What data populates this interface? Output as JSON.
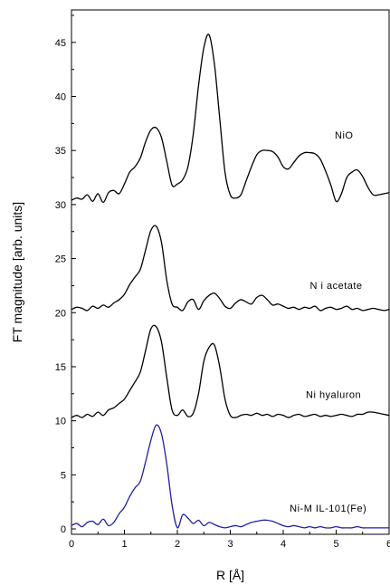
{
  "chart_data": {
    "type": "line",
    "xlabel": "R [Å]",
    "ylabel": "FT magnitude [arb. units]",
    "xlim": [
      0,
      6
    ],
    "ylim": [
      -0.5,
      48
    ],
    "xticks": [
      0,
      1,
      2,
      3,
      4,
      5,
      6
    ],
    "yticks": [
      0,
      5,
      10,
      15,
      20,
      25,
      30,
      35,
      40,
      45
    ],
    "grid": false,
    "legend": "none",
    "series": [
      {
        "name": "NiO",
        "color": "#000000",
        "x": [
          0.0,
          0.1,
          0.2,
          0.3,
          0.4,
          0.5,
          0.6,
          0.7,
          0.8,
          0.9,
          1.0,
          1.1,
          1.2,
          1.3,
          1.4,
          1.5,
          1.6,
          1.7,
          1.8,
          1.9,
          2.0,
          2.1,
          2.2,
          2.3,
          2.4,
          2.5,
          2.6,
          2.7,
          2.8,
          2.9,
          3.0,
          3.1,
          3.2,
          3.3,
          3.4,
          3.5,
          3.6,
          3.7,
          3.8,
          3.9,
          4.0,
          4.1,
          4.2,
          4.3,
          4.4,
          4.5,
          4.6,
          4.7,
          4.8,
          4.9,
          5.0,
          5.1,
          5.2,
          5.3,
          5.4,
          5.5,
          5.6,
          5.7,
          5.8,
          5.9,
          6.0
        ],
        "y": [
          30.4,
          30.6,
          30.5,
          30.9,
          30.3,
          31.0,
          30.2,
          31.1,
          31.3,
          31.0,
          31.9,
          33.0,
          33.5,
          34.3,
          35.8,
          36.9,
          37.1,
          36.2,
          34.0,
          31.8,
          31.9,
          32.3,
          33.5,
          36.5,
          41.0,
          44.5,
          45.7,
          43.0,
          38.0,
          33.0,
          30.9,
          30.6,
          30.9,
          32.2,
          33.5,
          34.6,
          35.0,
          35.0,
          34.9,
          34.4,
          33.5,
          33.3,
          33.9,
          34.5,
          34.8,
          34.8,
          34.7,
          34.2,
          33.1,
          31.8,
          30.3,
          31.0,
          32.5,
          33.0,
          33.2,
          32.6,
          31.6,
          30.9,
          30.9,
          31.0,
          31.1
        ]
      },
      {
        "name": "N i acetate",
        "color": "#000000",
        "x": [
          0.0,
          0.1,
          0.2,
          0.3,
          0.4,
          0.5,
          0.6,
          0.7,
          0.8,
          0.9,
          1.0,
          1.1,
          1.2,
          1.3,
          1.4,
          1.5,
          1.6,
          1.7,
          1.8,
          1.9,
          2.0,
          2.1,
          2.2,
          2.3,
          2.4,
          2.5,
          2.6,
          2.7,
          2.8,
          2.9,
          3.0,
          3.1,
          3.2,
          3.3,
          3.4,
          3.5,
          3.6,
          3.7,
          3.8,
          3.9,
          4.0,
          4.1,
          4.2,
          4.3,
          4.4,
          4.5,
          4.6,
          4.7,
          4.8,
          4.9,
          5.0,
          5.1,
          5.2,
          5.3,
          5.4,
          5.5,
          5.6,
          5.7,
          5.8,
          5.9,
          6.0
        ],
        "y": [
          20.3,
          20.5,
          20.4,
          20.2,
          20.6,
          20.4,
          20.7,
          20.5,
          20.9,
          21.2,
          21.7,
          22.6,
          23.3,
          24.0,
          25.8,
          27.6,
          28.0,
          26.5,
          23.0,
          20.8,
          20.5,
          20.2,
          21.0,
          21.2,
          20.3,
          21.1,
          21.6,
          21.8,
          21.3,
          20.6,
          20.4,
          20.9,
          21.2,
          21.0,
          20.8,
          21.4,
          21.6,
          21.2,
          20.7,
          20.8,
          20.6,
          20.4,
          20.5,
          20.3,
          20.5,
          20.4,
          20.6,
          20.2,
          20.4,
          20.5,
          20.3,
          20.4,
          20.6,
          20.3,
          20.4,
          20.2,
          20.3,
          20.4,
          20.3,
          20.2,
          20.3
        ]
      },
      {
        "name": "Ni hyaluron",
        "color": "#000000",
        "x": [
          0.0,
          0.1,
          0.2,
          0.3,
          0.4,
          0.5,
          0.6,
          0.7,
          0.8,
          0.9,
          1.0,
          1.1,
          1.2,
          1.3,
          1.4,
          1.5,
          1.6,
          1.7,
          1.8,
          1.9,
          2.0,
          2.1,
          2.2,
          2.3,
          2.4,
          2.5,
          2.6,
          2.7,
          2.8,
          2.9,
          3.0,
          3.1,
          3.2,
          3.3,
          3.4,
          3.5,
          3.6,
          3.7,
          3.8,
          3.9,
          4.0,
          4.1,
          4.2,
          4.3,
          4.4,
          4.5,
          4.6,
          4.7,
          4.8,
          4.9,
          5.0,
          5.1,
          5.2,
          5.3,
          5.4,
          5.5,
          5.6,
          5.7,
          5.8,
          5.9,
          6.0
        ],
        "y": [
          10.3,
          10.5,
          10.3,
          10.6,
          10.4,
          10.8,
          10.5,
          11.0,
          11.2,
          11.6,
          12.0,
          12.8,
          13.6,
          14.5,
          16.5,
          18.5,
          18.7,
          17.3,
          14.0,
          11.0,
          10.5,
          11.0,
          10.4,
          10.7,
          12.5,
          15.5,
          16.8,
          17.0,
          15.0,
          12.0,
          10.5,
          10.3,
          10.5,
          10.6,
          10.5,
          10.7,
          10.5,
          10.6,
          10.4,
          10.6,
          10.5,
          10.3,
          10.5,
          10.6,
          10.4,
          10.5,
          10.6,
          10.4,
          10.5,
          10.4,
          10.5,
          10.6,
          10.5,
          10.4,
          10.6,
          10.6,
          10.8,
          10.8,
          10.7,
          10.6,
          10.5
        ]
      },
      {
        "name": "Ni-M IL-101(Fe)",
        "color": "#1f1fa8",
        "x": [
          0.0,
          0.1,
          0.2,
          0.3,
          0.4,
          0.5,
          0.6,
          0.7,
          0.8,
          0.9,
          1.0,
          1.1,
          1.2,
          1.3,
          1.4,
          1.5,
          1.6,
          1.7,
          1.8,
          1.9,
          2.0,
          2.1,
          2.2,
          2.3,
          2.4,
          2.5,
          2.6,
          2.7,
          2.8,
          2.9,
          3.0,
          3.1,
          3.2,
          3.3,
          3.4,
          3.5,
          3.6,
          3.7,
          3.8,
          3.9,
          4.0,
          4.1,
          4.2,
          4.3,
          4.4,
          4.5,
          4.6,
          4.7,
          4.8,
          4.9,
          5.0,
          5.1,
          5.2,
          5.3,
          5.4,
          5.5,
          5.6,
          5.7,
          5.8,
          5.9,
          6.0
        ],
        "y": [
          0.3,
          0.5,
          0.2,
          0.6,
          0.7,
          0.4,
          0.9,
          0.3,
          0.6,
          1.4,
          2.0,
          3.0,
          3.8,
          4.4,
          6.2,
          8.2,
          9.6,
          8.8,
          6.0,
          2.2,
          0.1,
          1.3,
          1.0,
          0.5,
          0.8,
          0.3,
          0.6,
          0.4,
          0.2,
          0.1,
          0.2,
          0.3,
          0.2,
          0.4,
          0.6,
          0.7,
          0.8,
          0.8,
          0.7,
          0.5,
          0.3,
          0.2,
          0.3,
          0.2,
          0.1,
          0.2,
          0.1,
          0.2,
          0.1,
          0.1,
          0.2,
          0.1,
          0.1,
          0.1,
          0.2,
          0.1,
          0.1,
          0.1,
          0.1,
          0.1,
          0.1
        ]
      }
    ],
    "annotations": [
      {
        "text": "NiO",
        "x": 5.15,
        "y": 36.1
      },
      {
        "text": "N i acetate",
        "x": 5.0,
        "y": 22.2
      },
      {
        "text": "Ni hyaluron",
        "x": 4.95,
        "y": 12.1
      },
      {
        "text": "Ni-M IL-101(Fe)",
        "x": 4.85,
        "y": 1.6
      }
    ]
  }
}
